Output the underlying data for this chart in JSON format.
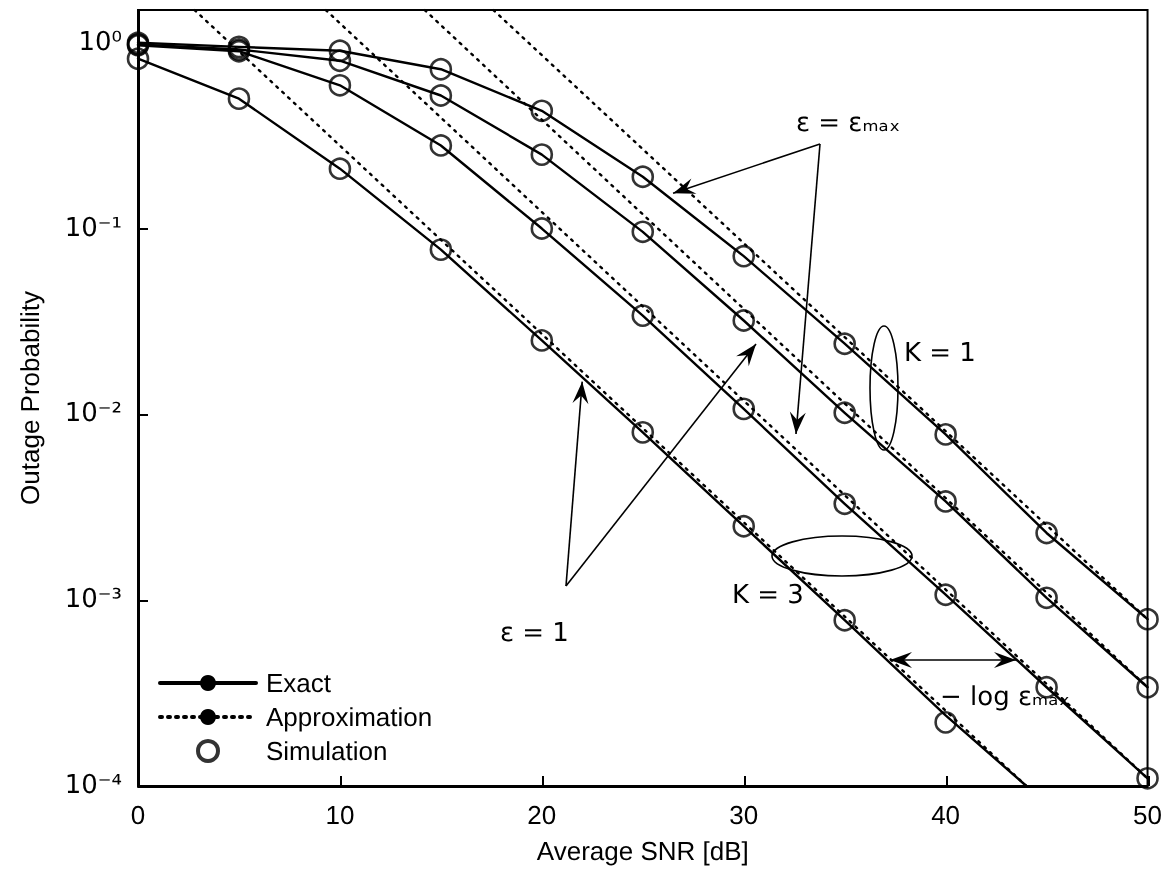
{
  "chart_data": {
    "type": "line",
    "xlabel": "Average SNR [dB]",
    "ylabel": "Outage Probability",
    "xlim": [
      0,
      50
    ],
    "xticks": [
      0,
      10,
      20,
      30,
      40,
      50
    ],
    "ylim": [
      0.0001,
      1.5
    ],
    "yticks": [
      {
        "value": 0.0001,
        "label": "10⁻⁴"
      },
      {
        "value": 0.001,
        "label": "10⁻³"
      },
      {
        "value": 0.01,
        "label": "10⁻²"
      },
      {
        "value": 0.1,
        "label": "10⁻¹"
      },
      {
        "value": 1,
        "label": "10⁰"
      }
    ],
    "log": "y",
    "grid": false,
    "legend": "bottom left",
    "annotations": [
      {
        "text": "ε = εₘₐₓ",
        "x": 26.5,
        "y": 0.155
      },
      "K = 1",
      "K = 3",
      {
        "text": "ε = 1",
        "x": 22,
        "y": 0.015
      },
      "− log εₘₐₓ"
    ],
    "series": [
      {
        "name": "Exact",
        "line_style": "solid",
        "marker": "none",
        "color": "#000000",
        "x": [
          0,
          5,
          10,
          15,
          20,
          25,
          30,
          35,
          40,
          45,
          50
        ],
        "values": [
          1.0,
          0.95,
          0.905,
          0.72,
          0.43,
          0.19,
          0.071,
          0.024,
          0.0078,
          0.0023,
          0.00079
        ]
      },
      {
        "line_style": "solid",
        "marker": "none",
        "color": "#000000",
        "x": [
          0,
          5,
          10,
          15,
          20,
          25,
          30,
          35,
          40,
          45,
          50
        ],
        "values": [
          0.98,
          0.92,
          0.8,
          0.52,
          0.25,
          0.096,
          0.032,
          0.0102,
          0.0034,
          0.00103,
          0.00034
        ]
      },
      {
        "line_style": "solid",
        "marker": "none",
        "color": "#000000",
        "x": [
          0,
          5,
          10,
          15,
          20,
          25,
          30,
          35,
          40,
          45,
          50
        ],
        "values": [
          0.97,
          0.9,
          0.59,
          0.28,
          0.1,
          0.034,
          0.0107,
          0.0033,
          0.00107,
          0.00034,
          0.00011
        ]
      },
      {
        "line_style": "solid",
        "marker": "none",
        "color": "#000000",
        "x": [
          0,
          5,
          10,
          15,
          20,
          25,
          30,
          35,
          40,
          44
        ],
        "values": [
          0.82,
          0.5,
          0.21,
          0.077,
          0.025,
          0.008,
          0.0025,
          0.00078,
          0.00024,
          0.0001
        ]
      },
      {
        "name": "Approximation",
        "line_style": "dotted",
        "marker": "none",
        "color": "#000000",
        "x": [
          17.6,
          50
        ],
        "values": [
          1.5,
          0.00079
        ]
      },
      {
        "line_style": "dotted",
        "marker": "none",
        "color": "#000000",
        "x": [
          14.2,
          50
        ],
        "values": [
          1.5,
          0.00034
        ]
      },
      {
        "line_style": "dotted",
        "marker": "none",
        "color": "#000000",
        "x": [
          9.3,
          50
        ],
        "values": [
          1.5,
          0.00011
        ]
      },
      {
        "line_style": "dotted",
        "marker": "none",
        "color": "#000000",
        "x": [
          2.8,
          44
        ],
        "values": [
          1.5,
          0.0001
        ]
      },
      {
        "name": "Simulation",
        "type": "scatter",
        "marker": "circle",
        "color": "#000000",
        "x": [
          0,
          5,
          10,
          15,
          20,
          25,
          30,
          35,
          40,
          45,
          50
        ],
        "values": [
          1.0,
          0.95,
          0.905,
          0.72,
          0.43,
          0.19,
          0.071,
          0.024,
          0.0078,
          0.0023,
          0.00079
        ]
      },
      {
        "type": "scatter",
        "marker": "circle",
        "color": "#000000",
        "x": [
          0,
          5,
          10,
          15,
          20,
          25,
          30,
          35,
          40,
          45,
          50
        ],
        "values": [
          0.98,
          0.92,
          0.8,
          0.52,
          0.25,
          0.096,
          0.032,
          0.0102,
          0.0034,
          0.00103,
          0.00034
        ]
      },
      {
        "type": "scatter",
        "marker": "circle",
        "color": "#000000",
        "x": [
          0,
          5,
          10,
          15,
          20,
          25,
          30,
          35,
          40,
          45,
          50
        ],
        "values": [
          0.97,
          0.9,
          0.59,
          0.28,
          0.1,
          0.034,
          0.0107,
          0.0033,
          0.00107,
          0.00034,
          0.00011
        ]
      },
      {
        "type": "scatter",
        "marker": "circle",
        "color": "#000000",
        "x": [
          0,
          5,
          10,
          15,
          20,
          25,
          30,
          35,
          40
        ],
        "values": [
          0.82,
          0.5,
          0.21,
          0.077,
          0.025,
          0.008,
          0.0025,
          0.00078,
          0.00022
        ]
      }
    ]
  }
}
